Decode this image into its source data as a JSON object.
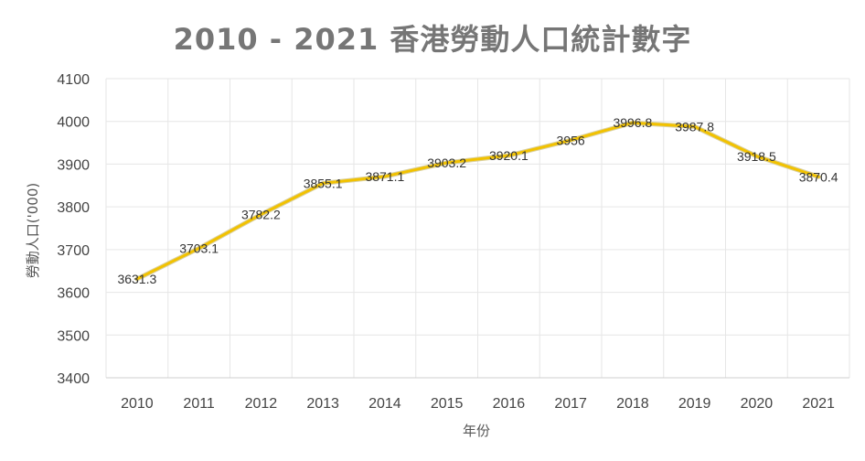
{
  "chart_data": {
    "type": "line",
    "title": "2010 - 2021 香港勞動人口統計數字",
    "xlabel": "年份",
    "ylabel": "勞動人口('000)",
    "x": [
      "2010",
      "2011",
      "2012",
      "2013",
      "2014",
      "2015",
      "2016",
      "2017",
      "2018",
      "2019",
      "2020",
      "2021"
    ],
    "series": [
      {
        "values": [
          3631.3,
          3703.1,
          3782.2,
          3855.1,
          3871.1,
          3903.2,
          3920.1,
          3956,
          3996.8,
          3987.8,
          3918.5,
          3870.4
        ],
        "labels": [
          "3631.3",
          "3703.1",
          "3782.2",
          "3855.1",
          "3871.1",
          "3903.2",
          "3920.1",
          "3956",
          "3996.8",
          "3987.8",
          "3918.5",
          "3870.4"
        ],
        "color": "#F2C200"
      }
    ],
    "ylim": [
      3400,
      4100
    ],
    "yticks": [
      "3400",
      "3500",
      "3600",
      "3700",
      "3800",
      "3900",
      "4000",
      "4100"
    ],
    "grid": true,
    "gridColor": "#e6e6e6"
  }
}
